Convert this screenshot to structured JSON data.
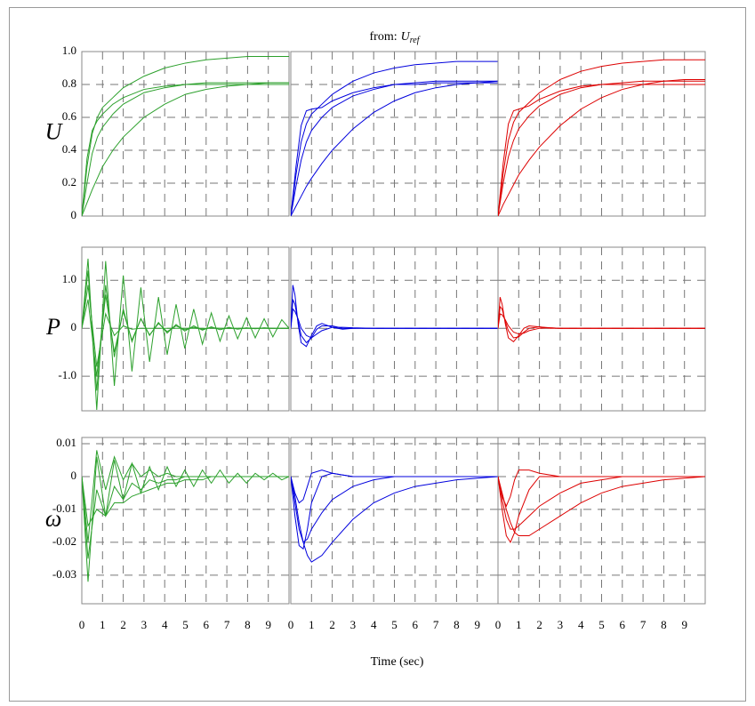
{
  "chart_data": [
    {
      "type": "line",
      "ylabel": "U",
      "ylim": [
        0,
        1
      ],
      "yticks": [
        0,
        0.2,
        0.4,
        0.6,
        0.8,
        {
          "value": 1,
          "label": "1.0"
        }
      ],
      "xlim": [
        0,
        10
      ],
      "grid": true,
      "x": [
        0,
        0.25,
        0.5,
        0.75,
        1,
        1.5,
        2,
        3,
        4,
        5,
        6,
        7,
        8,
        9,
        10
      ],
      "series": [
        {
          "color": "#2ca02c",
          "values": [
            0,
            0.35,
            0.52,
            0.58,
            0.62,
            0.68,
            0.72,
            0.77,
            0.79,
            0.8,
            0.8,
            0.8,
            0.8,
            0.8,
            0.8
          ]
        },
        {
          "color": "#2ca02c",
          "values": [
            0,
            0.2,
            0.38,
            0.48,
            0.54,
            0.62,
            0.68,
            0.75,
            0.78,
            0.8,
            0.81,
            0.81,
            0.81,
            0.81,
            0.81
          ]
        },
        {
          "color": "#2ca02c",
          "values": [
            0,
            0.08,
            0.16,
            0.23,
            0.3,
            0.4,
            0.48,
            0.6,
            0.68,
            0.74,
            0.77,
            0.79,
            0.8,
            0.81,
            0.81
          ]
        },
        {
          "color": "#2ca02c",
          "values": [
            0,
            0.3,
            0.5,
            0.6,
            0.66,
            0.72,
            0.78,
            0.85,
            0.9,
            0.93,
            0.95,
            0.96,
            0.97,
            0.97,
            0.97
          ]
        }
      ]
    },
    {
      "type": "line",
      "title": "from:",
      "title_var": "U",
      "title_sub": "ref",
      "ylim": [
        0,
        1
      ],
      "xlim": [
        0,
        10
      ],
      "grid": true,
      "x": [
        0,
        0.25,
        0.5,
        0.75,
        1,
        1.5,
        2,
        3,
        4,
        5,
        6,
        7,
        8,
        9,
        10
      ],
      "series": [
        {
          "color": "#0000dd",
          "values": [
            0,
            0.3,
            0.55,
            0.64,
            0.65,
            0.66,
            0.7,
            0.75,
            0.78,
            0.8,
            0.8,
            0.81,
            0.81,
            0.81,
            0.81
          ]
        },
        {
          "color": "#0000dd",
          "values": [
            0,
            0.18,
            0.34,
            0.45,
            0.52,
            0.6,
            0.66,
            0.73,
            0.77,
            0.8,
            0.81,
            0.82,
            0.82,
            0.82,
            0.82
          ]
        },
        {
          "color": "#0000dd",
          "values": [
            0,
            0.06,
            0.12,
            0.18,
            0.23,
            0.32,
            0.4,
            0.53,
            0.63,
            0.7,
            0.75,
            0.78,
            0.8,
            0.81,
            0.82
          ]
        },
        {
          "color": "#0000dd",
          "values": [
            0,
            0.25,
            0.45,
            0.56,
            0.62,
            0.68,
            0.74,
            0.82,
            0.87,
            0.9,
            0.92,
            0.93,
            0.94,
            0.94,
            0.94
          ]
        }
      ]
    },
    {
      "type": "line",
      "ylim": [
        0,
        1
      ],
      "xlim": [
        0,
        10
      ],
      "grid": true,
      "x": [
        0,
        0.25,
        0.5,
        0.75,
        1,
        1.5,
        2,
        3,
        4,
        5,
        6,
        7,
        8,
        9,
        10
      ],
      "series": [
        {
          "color": "#dd0000",
          "values": [
            0,
            0.32,
            0.56,
            0.64,
            0.65,
            0.67,
            0.71,
            0.76,
            0.79,
            0.8,
            0.8,
            0.8,
            0.8,
            0.8,
            0.8
          ]
        },
        {
          "color": "#dd0000",
          "values": [
            0,
            0.2,
            0.36,
            0.46,
            0.53,
            0.61,
            0.67,
            0.74,
            0.78,
            0.8,
            0.81,
            0.82,
            0.82,
            0.82,
            0.82
          ]
        },
        {
          "color": "#dd0000",
          "values": [
            0,
            0.07,
            0.13,
            0.19,
            0.25,
            0.34,
            0.42,
            0.55,
            0.65,
            0.72,
            0.77,
            0.8,
            0.82,
            0.83,
            0.83
          ]
        },
        {
          "color": "#dd0000",
          "values": [
            0,
            0.26,
            0.46,
            0.57,
            0.63,
            0.69,
            0.75,
            0.83,
            0.88,
            0.91,
            0.93,
            0.94,
            0.95,
            0.95,
            0.95
          ]
        }
      ]
    },
    {
      "type": "line",
      "ylabel": "P",
      "ylim": [
        -1.72,
        1.69
      ],
      "yticks": [
        {
          "value": -1,
          "label": "-1.0"
        },
        0,
        {
          "value": 1,
          "label": "1.0"
        }
      ],
      "xlim": [
        0,
        10
      ],
      "grid": true,
      "x": [
        0,
        0.3,
        0.72,
        1.15,
        1.57,
        2.0,
        2.42,
        2.85,
        3.27,
        3.7,
        4.12,
        4.55,
        4.97,
        5.4,
        5.82,
        6.25,
        6.67,
        7.1,
        7.52,
        7.95,
        8.37,
        8.8,
        9.22,
        9.65,
        10
      ],
      "series": [
        {
          "color": "#2ca02c",
          "values": [
            0,
            1.45,
            -1.7,
            1.4,
            -1.2,
            1.1,
            -0.9,
            0.85,
            -0.7,
            0.65,
            -0.55,
            0.5,
            -0.42,
            0.4,
            -0.33,
            0.32,
            -0.27,
            0.26,
            -0.22,
            0.22,
            -0.2,
            0.2,
            -0.18,
            0.18,
            0
          ]
        },
        {
          "color": "#2ca02c",
          "values": [
            0,
            1.2,
            -1.3,
            0.9,
            -0.6,
            0.4,
            -0.28,
            0.2,
            -0.14,
            0.1,
            -0.07,
            0.05,
            -0.03,
            0.02,
            -0.02,
            0.01,
            0,
            0,
            0,
            0,
            0,
            0,
            0,
            0,
            0
          ]
        },
        {
          "color": "#2ca02c",
          "values": [
            0,
            0.9,
            -0.8,
            0.3,
            -0.15,
            0.05,
            -0.02,
            0,
            0,
            0,
            0,
            0,
            0,
            0,
            0,
            0,
            0,
            0,
            0,
            0,
            0,
            0,
            0,
            0,
            0
          ]
        },
        {
          "color": "#2ca02c",
          "values": [
            0,
            0.6,
            -1.0,
            0.7,
            -0.5,
            0.35,
            -0.25,
            0.2,
            -0.15,
            0.12,
            -0.1,
            0.08,
            -0.06,
            0.05,
            -0.04,
            0.03,
            -0.03,
            0.02,
            -0.02,
            0.01,
            -0.01,
            0.01,
            0,
            0,
            0
          ]
        }
      ]
    },
    {
      "type": "line",
      "ylim": [
        -1.72,
        1.69
      ],
      "xlim": [
        0,
        10
      ],
      "grid": true,
      "x": [
        0,
        0.1,
        0.2,
        0.35,
        0.5,
        0.75,
        1,
        1.25,
        1.5,
        2,
        2.5,
        3,
        4,
        6,
        8,
        10
      ],
      "series": [
        {
          "color": "#0000dd",
          "values": [
            0,
            0.9,
            0.7,
            0.1,
            -0.3,
            -0.38,
            -0.15,
            0.05,
            0.1,
            0.02,
            -0.02,
            0,
            0,
            0,
            0,
            0
          ]
        },
        {
          "color": "#0000dd",
          "values": [
            0,
            0.6,
            0.5,
            0.15,
            -0.15,
            -0.3,
            -0.2,
            -0.02,
            0.05,
            0.05,
            0,
            0,
            0,
            0,
            0,
            0
          ]
        },
        {
          "color": "#0000dd",
          "values": [
            0,
            0.4,
            0.35,
            0.2,
            0,
            -0.15,
            -0.2,
            -0.12,
            -0.05,
            0.02,
            0.02,
            0.01,
            0,
            0,
            0,
            0
          ]
        }
      ]
    },
    {
      "type": "line",
      "ylim": [
        -1.72,
        1.69
      ],
      "xlim": [
        0,
        10
      ],
      "grid": true,
      "x": [
        0,
        0.1,
        0.2,
        0.35,
        0.5,
        0.75,
        1,
        1.25,
        1.5,
        2,
        2.5,
        3,
        4,
        6,
        8,
        10
      ],
      "series": [
        {
          "color": "#dd0000",
          "values": [
            0,
            0.65,
            0.5,
            0.1,
            -0.2,
            -0.28,
            -0.15,
            0,
            0.05,
            0.03,
            0,
            0,
            0,
            0,
            0,
            0
          ]
        },
        {
          "color": "#dd0000",
          "values": [
            0,
            0.45,
            0.4,
            0.15,
            -0.05,
            -0.2,
            -0.18,
            -0.08,
            0,
            0.03,
            0.01,
            0,
            0,
            0,
            0,
            0
          ]
        },
        {
          "color": "#dd0000",
          "values": [
            0,
            0.3,
            0.28,
            0.18,
            0.05,
            -0.08,
            -0.12,
            -0.1,
            -0.05,
            0,
            0.01,
            0,
            0,
            0,
            0,
            0
          ]
        }
      ]
    },
    {
      "type": "line",
      "ylabel": "ω",
      "ylim": [
        -0.0387,
        0.0119
      ],
      "yticks": [
        -0.03,
        -0.02,
        -0.01,
        0,
        0.01
      ],
      "xlim": [
        0,
        10
      ],
      "xticks": [
        0,
        1,
        2,
        3,
        4,
        5,
        6,
        7,
        8,
        9
      ],
      "grid": true,
      "x": [
        0,
        0.3,
        0.72,
        1.15,
        1.57,
        2.0,
        2.42,
        2.85,
        3.27,
        3.7,
        4.12,
        4.55,
        4.97,
        5.4,
        5.82,
        6.25,
        6.67,
        7.1,
        7.52,
        7.95,
        8.37,
        8.8,
        9.22,
        9.65,
        10
      ],
      "series": [
        {
          "color": "#2ca02c",
          "values": [
            0,
            -0.032,
            0.006,
            -0.012,
            0.005,
            -0.007,
            0.004,
            -0.005,
            0.003,
            -0.004,
            0.003,
            -0.003,
            0.002,
            -0.003,
            0.002,
            -0.002,
            0.002,
            -0.002,
            0.001,
            -0.002,
            0.001,
            -0.001,
            0.001,
            -0.001,
            0
          ]
        },
        {
          "color": "#2ca02c",
          "values": [
            0,
            -0.025,
            -0.004,
            -0.012,
            -0.003,
            -0.007,
            -0.002,
            -0.004,
            -0.001,
            -0.002,
            -0.001,
            -0.001,
            0,
            0,
            0,
            0,
            0,
            0,
            0,
            0,
            0,
            0,
            0,
            0,
            0
          ]
        },
        {
          "color": "#2ca02c",
          "values": [
            0,
            -0.015,
            -0.01,
            -0.012,
            -0.008,
            -0.008,
            -0.006,
            -0.005,
            -0.004,
            -0.003,
            -0.002,
            -0.002,
            -0.001,
            -0.001,
            -0.001,
            0,
            0,
            0,
            0,
            0,
            0,
            0,
            0,
            0,
            0
          ]
        },
        {
          "color": "#2ca02c",
          "values": [
            0,
            -0.02,
            0.008,
            -0.004,
            0.006,
            -0.001,
            0.004,
            0,
            0.002,
            0,
            0.001,
            0,
            0,
            0,
            0,
            0,
            0,
            0,
            0,
            0,
            0,
            0,
            0,
            0,
            0
          ]
        }
      ]
    },
    {
      "type": "line",
      "xlabel": "Time (sec)",
      "ylim": [
        -0.0387,
        0.0119
      ],
      "xlim": [
        0,
        10
      ],
      "xticks": [
        0,
        1,
        2,
        3,
        4,
        5,
        6,
        7,
        8,
        9
      ],
      "grid": true,
      "x": [
        0,
        0.2,
        0.4,
        0.6,
        0.8,
        1,
        1.5,
        2,
        3,
        4,
        5,
        6,
        7,
        8,
        10
      ],
      "series": [
        {
          "color": "#0000dd",
          "values": [
            0,
            -0.012,
            -0.021,
            -0.022,
            -0.016,
            -0.008,
            0,
            0.001,
            0,
            0,
            0,
            0,
            0,
            0,
            0
          ]
        },
        {
          "color": "#0000dd",
          "values": [
            0,
            -0.008,
            -0.016,
            -0.02,
            -0.019,
            -0.016,
            -0.011,
            -0.007,
            -0.003,
            -0.001,
            0,
            0,
            0,
            0,
            0
          ]
        },
        {
          "color": "#0000dd",
          "values": [
            0,
            -0.006,
            -0.014,
            -0.02,
            -0.024,
            -0.026,
            -0.024,
            -0.02,
            -0.013,
            -0.008,
            -0.005,
            -0.003,
            -0.002,
            -0.001,
            0
          ]
        },
        {
          "color": "#0000dd",
          "values": [
            0,
            -0.005,
            -0.008,
            -0.007,
            -0.003,
            0.001,
            0.002,
            0.001,
            0,
            0,
            0,
            0,
            0,
            0,
            0
          ]
        }
      ]
    },
    {
      "type": "line",
      "ylim": [
        -0.0387,
        0.0119
      ],
      "xlim": [
        0,
        10
      ],
      "xticks": [
        0,
        1,
        2,
        3,
        4,
        5,
        6,
        7,
        8,
        9
      ],
      "grid": true,
      "x": [
        0,
        0.2,
        0.4,
        0.6,
        0.8,
        1,
        1.5,
        2,
        3,
        4,
        5,
        6,
        7,
        8,
        10
      ],
      "series": [
        {
          "color": "#dd0000",
          "values": [
            0,
            -0.01,
            -0.018,
            -0.02,
            -0.017,
            -0.012,
            -0.004,
            0,
            0,
            0,
            0,
            0,
            0,
            0,
            0
          ]
        },
        {
          "color": "#dd0000",
          "values": [
            0,
            -0.007,
            -0.013,
            -0.016,
            -0.016,
            -0.015,
            -0.012,
            -0.009,
            -0.005,
            -0.002,
            -0.001,
            0,
            0,
            0,
            0
          ]
        },
        {
          "color": "#dd0000",
          "values": [
            0,
            -0.005,
            -0.01,
            -0.014,
            -0.017,
            -0.018,
            -0.018,
            -0.016,
            -0.012,
            -0.008,
            -0.005,
            -0.003,
            -0.002,
            -0.001,
            0
          ]
        },
        {
          "color": "#dd0000",
          "values": [
            0,
            -0.006,
            -0.009,
            -0.006,
            -0.001,
            0.002,
            0.002,
            0.001,
            0,
            0,
            0,
            0,
            0,
            0,
            0
          ]
        }
      ]
    }
  ]
}
